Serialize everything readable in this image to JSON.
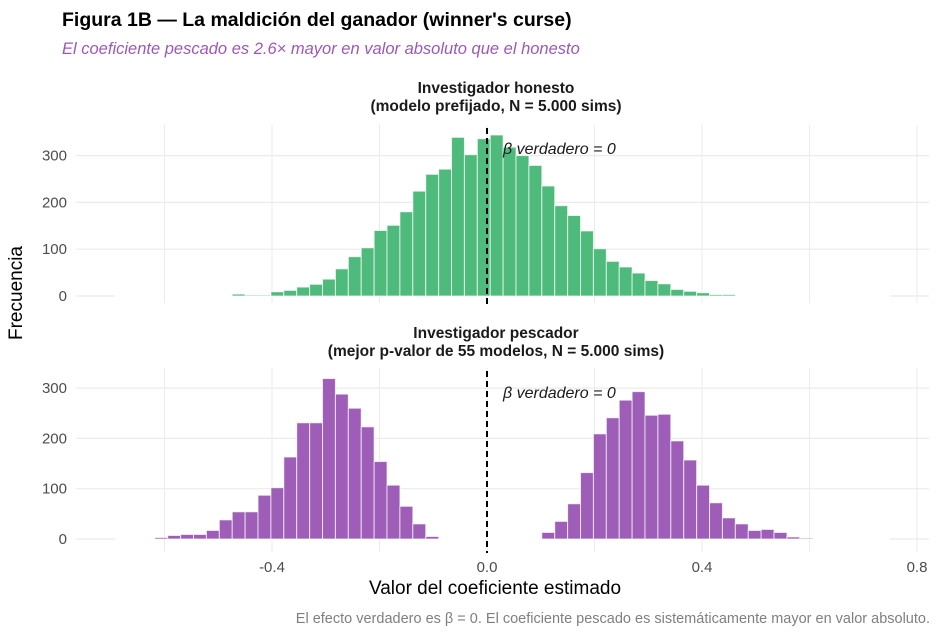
{
  "title": "Figura 1B — La maldición del ganador (winner's curse)",
  "subtitle": "El coeficiente pescado es 2.6× mayor en valor absoluto que el honesto",
  "caption": "El efecto verdadero es β = 0. El coeficiente pescado es sistemáticamente mayor en valor absoluto.",
  "colors": {
    "honest": "#48b978",
    "fisher": "#9b59b6",
    "subtitle": "#9b59b6"
  },
  "chart_data": {
    "type": "bar",
    "subtype": "histogram-facets",
    "xlabel": "Valor del coeficiente estimado",
    "ylabel": "Frecuencia",
    "xlim": [
      -0.74,
      0.86
    ],
    "xticks": [
      -0.4,
      0.0,
      0.4,
      0.8
    ],
    "xtick_labels": [
      "-0.4",
      "0.0",
      "0.4",
      "0.8"
    ],
    "yticks": [
      0,
      100,
      200,
      300
    ],
    "ytick_labels": [
      "0",
      "100",
      "200",
      "300"
    ],
    "grid": true,
    "bin_width": 0.024,
    "bin_start": -0.618,
    "reference_line": {
      "x": 0,
      "style": "dashed",
      "label": "β verdadero = 0"
    },
    "panels": [
      {
        "name": "honest",
        "strip_line1": "Investigador honesto",
        "strip_line2": "(modelo prefijado, N = 5.000 sims)",
        "color_key": "honest",
        "ylim": [
          0,
          365
        ],
        "first_bin_index": 6,
        "values": [
          4,
          2,
          2,
          9,
          12,
          19,
          25,
          36,
          58,
          84,
          103,
          140,
          151,
          180,
          224,
          260,
          271,
          339,
          302,
          336,
          344,
          318,
          300,
          279,
          235,
          193,
          172,
          139,
          101,
          74,
          62,
          49,
          33,
          26,
          14,
          10,
          7,
          3,
          3
        ]
      },
      {
        "name": "fisher",
        "strip_line1": "Investigador pescador",
        "strip_line2": "(mejor p-valor de 55 modelos, N = 5.000 sims)",
        "color_key": "fisher",
        "ylim": [
          0,
          335
        ],
        "first_bin_index": 0,
        "values": [
          3,
          7,
          9,
          9,
          17,
          38,
          54,
          54,
          87,
          102,
          163,
          231,
          231,
          319,
          288,
          260,
          223,
          154,
          107,
          65,
          30,
          5,
          0,
          0,
          0,
          0,
          0,
          0,
          0,
          0,
          13,
          35,
          70,
          132,
          209,
          241,
          276,
          293,
          246,
          248,
          195,
          157,
          107,
          72,
          42,
          30,
          17,
          19,
          13,
          4,
          2
        ]
      }
    ]
  }
}
